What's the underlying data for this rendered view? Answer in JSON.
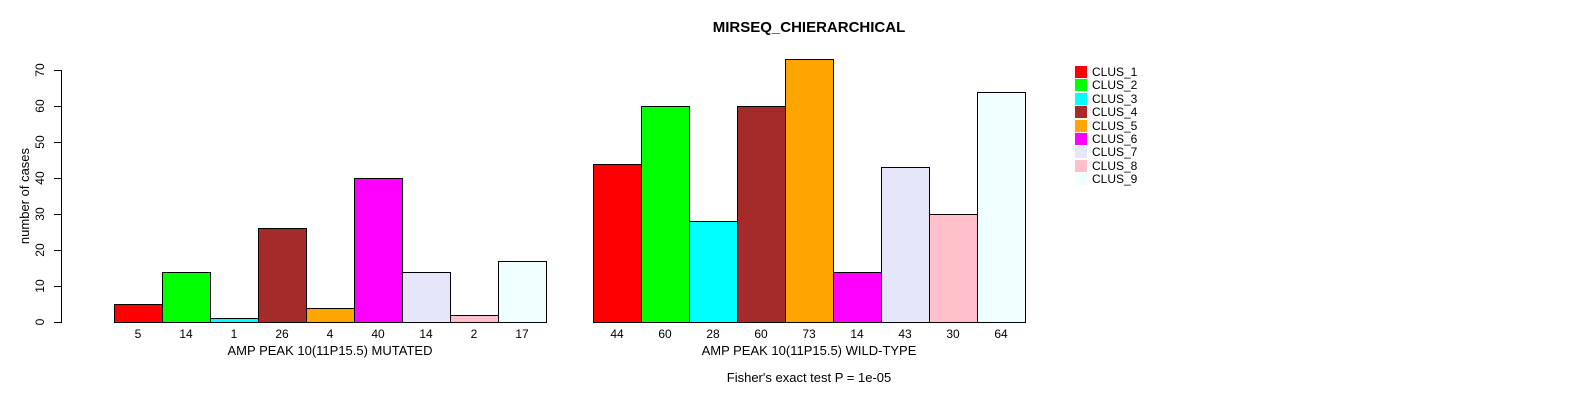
{
  "chart_data": {
    "type": "bar",
    "title": "MIRSEQ_CHIERARCHICAL",
    "subtitle": "Fisher's exact test P = 1e-05",
    "ylabel": "number of cases",
    "ylim": [
      0,
      70
    ],
    "yticks": [
      0,
      10,
      20,
      30,
      40,
      50,
      60,
      70
    ],
    "grid": false,
    "legend_position": "right",
    "bar_border_color": "#000000",
    "legend": [
      {
        "label": "CLUS_1",
        "color": "#FF0000"
      },
      {
        "label": "CLUS_2",
        "color": "#00FF00"
      },
      {
        "label": "CLUS_3",
        "color": "#00FFFF"
      },
      {
        "label": "CLUS_4",
        "color": "#A52A2A"
      },
      {
        "label": "CLUS_5",
        "color": "#FFA500"
      },
      {
        "label": "CLUS_6",
        "color": "#FF00FF"
      },
      {
        "label": "CLUS_7",
        "color": "#E6E6FA"
      },
      {
        "label": "CLUS_8",
        "color": "#FFC0CB"
      },
      {
        "label": "CLUS_9",
        "color": "#F0FFFF"
      }
    ],
    "groups": [
      {
        "xlabel": "AMP PEAK 10(11P15.5) MUTATED",
        "values": [
          5,
          14,
          1,
          26,
          4,
          40,
          14,
          2,
          17
        ]
      },
      {
        "xlabel": "AMP PEAK 10(11P15.5) WILD-TYPE",
        "values": [
          44,
          60,
          28,
          60,
          73,
          14,
          43,
          30,
          64
        ]
      }
    ]
  }
}
